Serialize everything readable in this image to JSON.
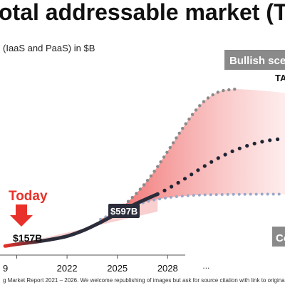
{
  "page": {
    "title": "otal addressable market (TAM",
    "subtitle": "(IaaS and PaaS) in $B",
    "footnote": "g Market Report 2021 – 2026. We welcome republishing of images but ask for source citation with link to original"
  },
  "chart_data": {
    "type": "area",
    "x_ticks": [
      "9",
      "2022",
      "2025",
      "2028",
      "..."
    ],
    "xlim": [
      2018,
      2035
    ],
    "ylim": [
      0,
      1900
    ],
    "annotations": {
      "today": "Today",
      "start_value": "$157B",
      "end_value": "$597B",
      "bullish": "Bullish sce",
      "tam": "TA",
      "conservative": "Co"
    },
    "series": [
      {
        "role": "actual",
        "x": [
          2018.3,
          2019,
          2020,
          2021,
          2022,
          2023,
          2024,
          2025,
          2026,
          2027.4
        ],
        "y": [
          70,
          88,
          110,
          135,
          170,
          230,
          310,
          400,
          490,
          597
        ]
      },
      {
        "role": "bullish",
        "x": [
          2024,
          2025,
          2026,
          2027,
          2028,
          2029,
          2030,
          2031,
          2032
        ],
        "y": [
          320,
          430,
          580,
          780,
          1030,
          1290,
          1510,
          1630,
          1660
        ]
      },
      {
        "role": "base",
        "x": [
          2027.4,
          2028,
          2029,
          2030,
          2031,
          2032,
          2033,
          2034,
          2035
        ],
        "y": [
          597,
          650,
          750,
          860,
          960,
          1040,
          1100,
          1140,
          1160
        ]
      },
      {
        "role": "conservative",
        "x": [
          2024,
          2025,
          2026,
          2027,
          2028,
          2029,
          2030,
          2031,
          2032,
          2033,
          2034,
          2035
        ],
        "y": [
          340,
          420,
          480,
          530,
          560,
          578,
          588,
          592,
          594,
          595,
          596,
          596
        ]
      }
    ],
    "colors": {
      "actual": "#2b2d3a",
      "actual_start": "#e8312a",
      "dots": "#8a8a8a",
      "base_dots": "#1f2433",
      "conservative_dots": "#9aa8c8",
      "band": "#f07070",
      "today": "#e8312a"
    },
    "grid": false,
    "legend": "none"
  }
}
